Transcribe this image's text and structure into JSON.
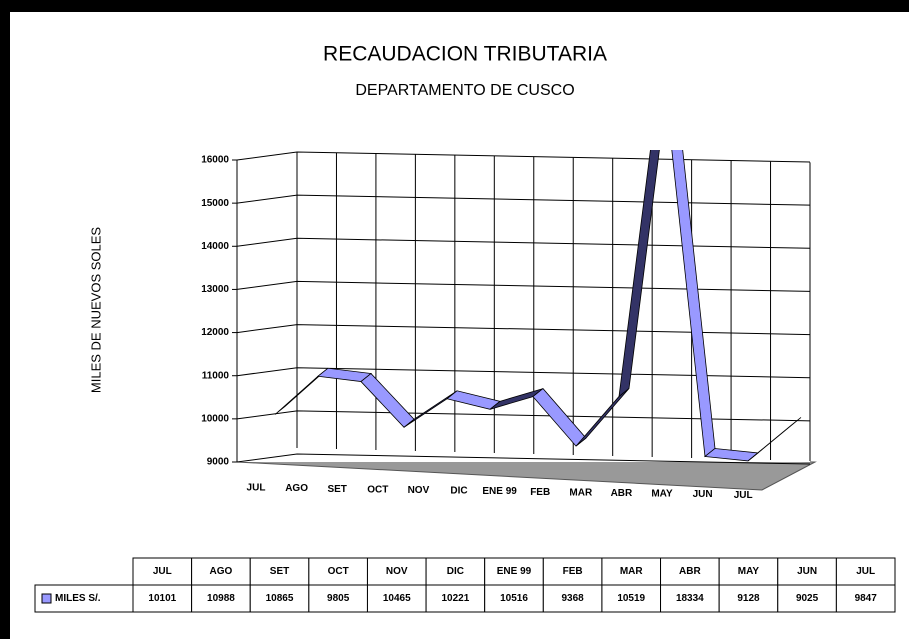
{
  "chart_data": {
    "type": "line3d",
    "title": "RECAUDACION TRIBUTARIA",
    "subtitle": "DEPARTAMENTO DE CUSCO",
    "y_label": "MILES DE NUEVOS SOLES",
    "categories": [
      "JUL",
      "AGO",
      "SET",
      "OCT",
      "NOV",
      "DIC",
      "ENE 99",
      "FEB",
      "MAR",
      "ABR",
      "MAY",
      "JUN",
      "JUL"
    ],
    "series": [
      {
        "name": "MILES S/.",
        "color": "#9999ff",
        "values": [
          10101,
          10988,
          10865,
          9805,
          10465,
          10221,
          10516,
          9368,
          10519,
          18334,
          9128,
          9025,
          9847
        ]
      }
    ],
    "ylim": [
      9000,
      16000
    ],
    "yticks": [
      9000,
      10000,
      11000,
      12000,
      13000,
      14000,
      15000,
      16000
    ],
    "grid": true
  }
}
